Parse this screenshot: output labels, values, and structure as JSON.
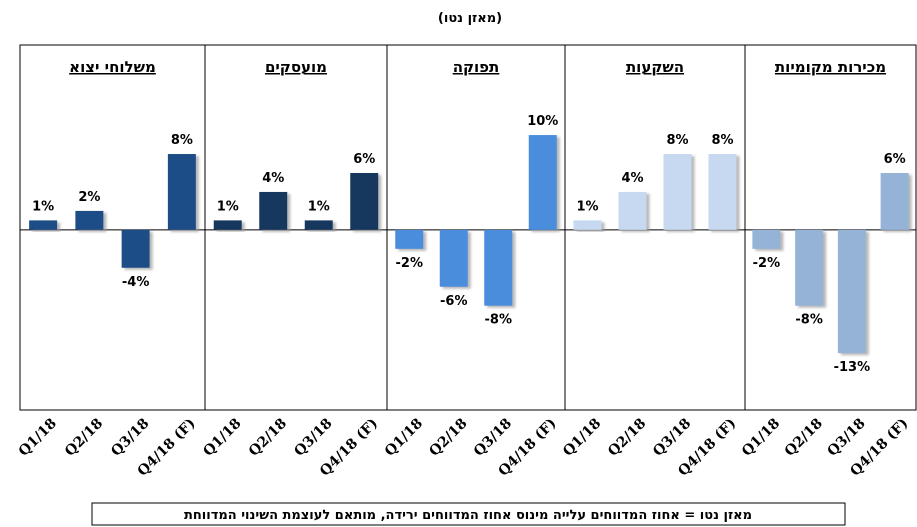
{
  "title": "(מאזן נטו)",
  "note": "מאזן נטו = אחוז המדווחים עלייה מינוס אחוז המדווחים ירידה, מותאם לעוצמת השינוי המדווחת",
  "chart_data": [
    {
      "type": "bar",
      "title": "משלוחי יצוא",
      "categories": [
        "Q1/18",
        "Q2/18",
        "Q3/18",
        "Q4/18 (F)"
      ],
      "values": [
        1,
        2,
        -4,
        8
      ],
      "value_labels": [
        "1%",
        "2%",
        "-4%",
        "8%"
      ],
      "color": "#1f4e86",
      "ylim": [
        -19,
        19.5
      ]
    },
    {
      "type": "bar",
      "title": "מועסקים",
      "categories": [
        "Q1/18",
        "Q2/18",
        "Q3/18",
        "Q4/18 (F)"
      ],
      "values": [
        1,
        4,
        1,
        6
      ],
      "value_labels": [
        "1%",
        "4%",
        "1%",
        "6%"
      ],
      "color": "#17375e",
      "ylim": [
        -19,
        19.5
      ]
    },
    {
      "type": "bar",
      "title": "תפוקה",
      "categories": [
        "Q1/18",
        "Q2/18",
        "Q3/18",
        "Q4/18 (F)"
      ],
      "values": [
        -2,
        -6,
        -8,
        10
      ],
      "value_labels": [
        "-2%",
        "-6%",
        "-8%",
        "10%"
      ],
      "color": "#4a8ddc",
      "ylim": [
        -19,
        19.5
      ]
    },
    {
      "type": "bar",
      "title": "השקעות",
      "categories": [
        "Q1/18",
        "Q2/18",
        "Q3/18",
        "Q4/18 (F)"
      ],
      "values": [
        1,
        4,
        8,
        8
      ],
      "value_labels": [
        "1%",
        "4%",
        "8%",
        "8%"
      ],
      "color": "#c6d9f1",
      "ylim": [
        -19,
        19.5
      ]
    },
    {
      "type": "bar",
      "title": "מכירות מקומיות",
      "categories": [
        "Q1/18",
        "Q2/18",
        "Q3/18",
        "Q4/18 (F)"
      ],
      "values": [
        -2,
        -8,
        -13,
        6
      ],
      "value_labels": [
        "-2%",
        "-8%",
        "-13%",
        "6%"
      ],
      "color": "#95b3d7",
      "ylim": [
        -19,
        19.5
      ]
    }
  ]
}
